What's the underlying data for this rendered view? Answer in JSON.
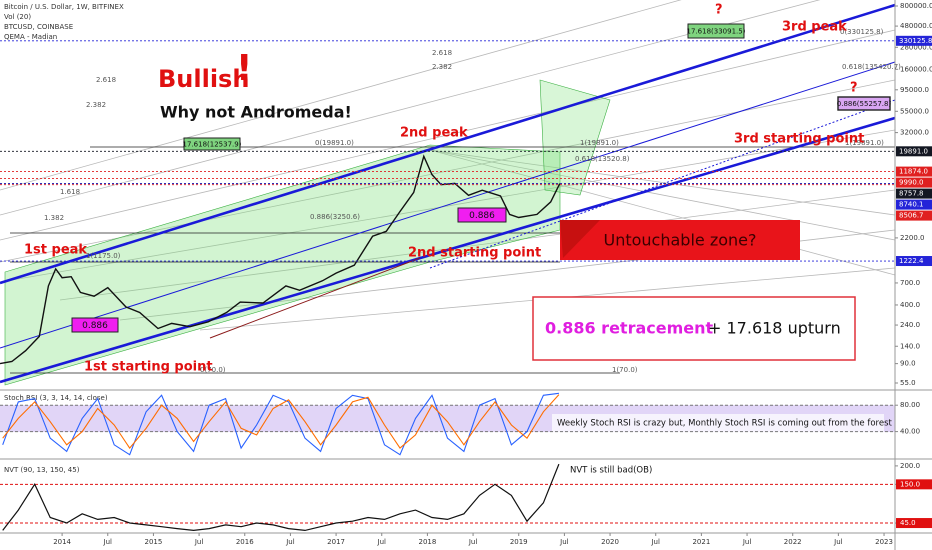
{
  "header": {
    "title": "Bitcoin / U.S. Dollar, 1W, BITFINEX",
    "volume": "Vol (20)",
    "symbol": "BTCUSD, COINBASE",
    "indicator": "QEMA - Madian"
  },
  "annotations": {
    "bullish": "Bullish",
    "exclaim": "!",
    "andromeda": "Why not Andromeda!",
    "peak1": "1st peak",
    "peak2": "2nd peak",
    "peak3": "3rd peak",
    "question1": "?",
    "question2": "?",
    "start1": "1st starting point",
    "start2": "2nd starting point",
    "start3": "3rd starting point",
    "untouchable": "Untouchable zone?",
    "box1": "0.886",
    "box2": "0.886",
    "retracement": "0.886 retracement",
    "upturn": "+ 17.618 upturn",
    "stoch_note": "Weekly Stoch RSI is crazy but, Monthly Stoch RSI is coming out from the forest",
    "nvt_note": "NVT is still bad(OB)",
    "fib_green1": "17.618(12537.9)",
    "fib_green2": "17.618(33091.5)",
    "fib_purple": "0.886(55257.8)",
    "fib_top0": "0(330125.8)",
    "fib_top618": "0.618(135420.7)",
    "fib_a": "0(19891.0)",
    "fib_b": "1(19891.0)",
    "fib_c": "1(19891.0)",
    "fib_d": "0.618(13520.8)",
    "fib_e": "1(1175.0)",
    "fib_f": "0.886(3250.6)",
    "fib_g": "0(70.0)",
    "fib_h": "1(70.0)",
    "fan1": "2.618",
    "fan2": "2.382",
    "fan3": "2.618",
    "fan4": "2.382",
    "fan5": "1.618",
    "fan6": "1.382"
  },
  "chart_data": [
    {
      "type": "line",
      "log_scale": true,
      "color": "#111111",
      "x": [
        2013.32,
        2013.45,
        2013.6,
        2013.75,
        2013.85,
        2013.93,
        2014.0,
        2014.1,
        2014.2,
        2014.35,
        2014.5,
        2014.7,
        2014.85,
        2015.05,
        2015.2,
        2015.4,
        2015.6,
        2015.8,
        2015.95,
        2016.2,
        2016.45,
        2016.6,
        2016.85,
        2017.0,
        2017.2,
        2017.4,
        2017.55,
        2017.7,
        2017.85,
        2017.96,
        2018.05,
        2018.15,
        2018.3,
        2018.45,
        2018.6,
        2018.8,
        2018.9,
        2019.0,
        2019.2,
        2019.35,
        2019.45
      ],
      "values": [
        90,
        95,
        125,
        180,
        650,
        1000,
        800,
        820,
        550,
        500,
        620,
        380,
        330,
        220,
        250,
        230,
        260,
        330,
        430,
        420,
        650,
        580,
        740,
        900,
        1100,
        2300,
        2600,
        4300,
        7000,
        17500,
        11000,
        8500,
        8800,
        6500,
        7400,
        6400,
        4000,
        3700,
        4000,
        5500,
        8757.8
      ],
      "xlim": [
        2013.32,
        2023.12
      ],
      "xticks": [
        2014,
        {
          "value": 2014.5,
          "label": "Jul"
        },
        2015,
        {
          "value": 2015.5,
          "label": "Jul"
        },
        2016,
        {
          "value": 2016.5,
          "label": "Jul"
        },
        2017,
        {
          "value": 2017.5,
          "label": "Jul"
        },
        2018,
        {
          "value": 2018.5,
          "label": "Jul"
        },
        2019,
        {
          "value": 2019.5,
          "label": "Jul"
        },
        2020,
        {
          "value": 2020.5,
          "label": "Jul"
        },
        2021,
        {
          "value": 2021.5,
          "label": "Jul"
        },
        2022,
        {
          "value": 2022.5,
          "label": "Jul"
        },
        2023
      ],
      "ylim": [
        55,
        800000
      ],
      "yticks": [
        {
          "value": 800000,
          "label": "800000.0"
        },
        {
          "value": 480000,
          "label": "480000.0"
        },
        {
          "value": 280000,
          "label": "280000.0"
        },
        {
          "value": 160000,
          "label": "160000.0"
        },
        {
          "value": 95000,
          "label": "95000.0"
        },
        {
          "value": 55000,
          "label": "55000.0"
        },
        {
          "value": 32000,
          "label": "32000.0"
        },
        {
          "value": 2200,
          "label": "2200.0"
        },
        {
          "value": 700,
          "label": "700.0"
        },
        {
          "value": 400,
          "label": "400.0"
        },
        {
          "value": 240,
          "label": "240.0"
        },
        {
          "value": 140,
          "label": "140.0"
        },
        {
          "value": 90,
          "label": "90.0"
        },
        {
          "value": 55,
          "label": "55.0"
        }
      ],
      "price_labels": [
        {
          "value": 330125.8,
          "label": "330125.8",
          "color": "#2424d8"
        },
        {
          "value": 19891,
          "label": "19891.0",
          "color": "#131722"
        },
        {
          "value": 11874,
          "label": "11874.0",
          "color": "#e02020"
        },
        {
          "value": 9990,
          "label": "9990.0",
          "color": "#e02020"
        },
        {
          "value": 8757.8,
          "label": "8757.8",
          "color": "#131722"
        },
        {
          "value": 8740.1,
          "label": "8740.1",
          "color": "#2424d8"
        },
        {
          "value": 8506.7,
          "label": "8506.7",
          "color": "#e02020"
        },
        {
          "value": 1222.4,
          "label": "1222.4",
          "color": "#2424d8"
        }
      ]
    },
    {
      "type": "line",
      "title": "Stoch RSI (3, 3, 14, 14, close)",
      "x": [
        2013.35,
        2013.52,
        2013.7,
        2013.87,
        2014.05,
        2014.22,
        2014.39,
        2014.57,
        2014.74,
        2014.92,
        2015.09,
        2015.26,
        2015.44,
        2015.61,
        2015.79,
        2015.96,
        2016.13,
        2016.31,
        2016.48,
        2016.66,
        2016.83,
        2017.0,
        2017.18,
        2017.35,
        2017.53,
        2017.7,
        2017.87,
        2018.05,
        2018.22,
        2018.4,
        2018.57,
        2018.74,
        2018.92,
        2019.09,
        2019.27,
        2019.44
      ],
      "series": [
        {
          "color": "#2962ff",
          "values": [
            20,
            85,
            90,
            30,
            10,
            60,
            90,
            20,
            5,
            70,
            95,
            40,
            10,
            80,
            90,
            15,
            50,
            95,
            85,
            30,
            10,
            75,
            95,
            90,
            20,
            5,
            60,
            95,
            30,
            10,
            80,
            90,
            20,
            40,
            95,
            98
          ]
        },
        {
          "color": "#ff6d00",
          "values": [
            30,
            60,
            85,
            55,
            20,
            40,
            75,
            50,
            15,
            45,
            80,
            60,
            25,
            55,
            85,
            45,
            35,
            75,
            88,
            55,
            20,
            50,
            85,
            92,
            50,
            15,
            35,
            80,
            55,
            20,
            55,
            85,
            50,
            30,
            70,
            96
          ]
        }
      ],
      "ylim": [
        0,
        100
      ],
      "yticks": [
        {
          "value": 80,
          "label": "80.00"
        },
        {
          "value": 40,
          "label": "40.00"
        }
      ]
    },
    {
      "type": "line",
      "title": "NVT (90, 13, 150, 45)",
      "color": "#111111",
      "x": [
        2013.35,
        2013.52,
        2013.7,
        2013.87,
        2014.05,
        2014.22,
        2014.39,
        2014.57,
        2014.74,
        2014.92,
        2015.09,
        2015.26,
        2015.44,
        2015.61,
        2015.79,
        2015.96,
        2016.13,
        2016.31,
        2016.48,
        2016.66,
        2016.83,
        2017.0,
        2017.18,
        2017.35,
        2017.53,
        2017.7,
        2017.87,
        2018.05,
        2018.22,
        2018.4,
        2018.57,
        2018.74,
        2018.92,
        2019.09,
        2019.27,
        2019.44
      ],
      "values": [
        25,
        80,
        150,
        60,
        45,
        70,
        55,
        60,
        45,
        40,
        35,
        30,
        25,
        30,
        40,
        35,
        45,
        40,
        30,
        25,
        35,
        45,
        50,
        60,
        55,
        70,
        80,
        60,
        55,
        70,
        120,
        150,
        120,
        50,
        100,
        205
      ],
      "ylim": [
        18,
        216
      ],
      "yticks": [
        {
          "value": 200,
          "label": "200.0"
        },
        {
          "value": 150,
          "label": "150.0"
        },
        {
          "value": 45,
          "label": "45.0"
        }
      ]
    }
  ]
}
